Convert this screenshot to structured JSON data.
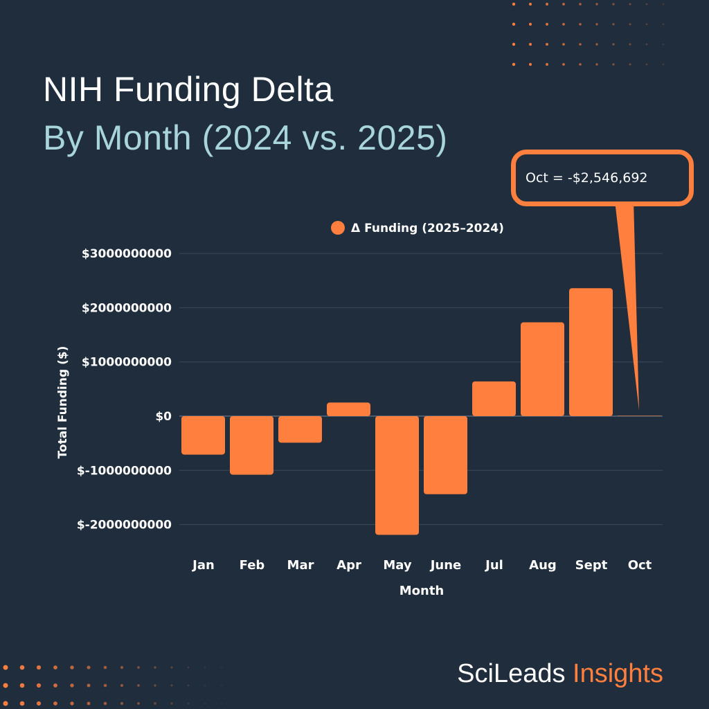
{
  "title": "NIH Funding Delta",
  "subtitle": "By Month (2024 vs. 2025)",
  "brand": {
    "part1": "SciLeads",
    "part2": "Insights"
  },
  "annotation": "Oct = -$2,546,692",
  "colors": {
    "background": "#1f2d3c",
    "bar": "#ff7f3f",
    "subtitle": "#a8d4dc",
    "grid": "#3d4b59"
  },
  "chart_data": {
    "type": "bar",
    "categories": [
      "Jan",
      "Feb",
      "Mar",
      "Apr",
      "May",
      "June",
      "Jul",
      "Aug",
      "Sept",
      "Oct"
    ],
    "series": [
      {
        "name": "Δ Funding (2025–2024)",
        "values": [
          -710000000,
          -1080000000,
          -490000000,
          250000000,
          -2190000000,
          -1440000000,
          640000000,
          1730000000,
          2360000000,
          -2546692
        ]
      }
    ],
    "xlabel": "Month",
    "ylabel": "Total Funding ($)",
    "ylim": [
      -2500000000,
      3000000000
    ],
    "yticks": [
      3000000000,
      2000000000,
      1000000000,
      0,
      -1000000000,
      -2000000000
    ],
    "ytick_labels": [
      "$3000000000",
      "$2000000000",
      "$1000000000",
      "$0",
      "$-1000000000",
      "$-2000000000"
    ],
    "grid": true,
    "legend": "top-center"
  }
}
